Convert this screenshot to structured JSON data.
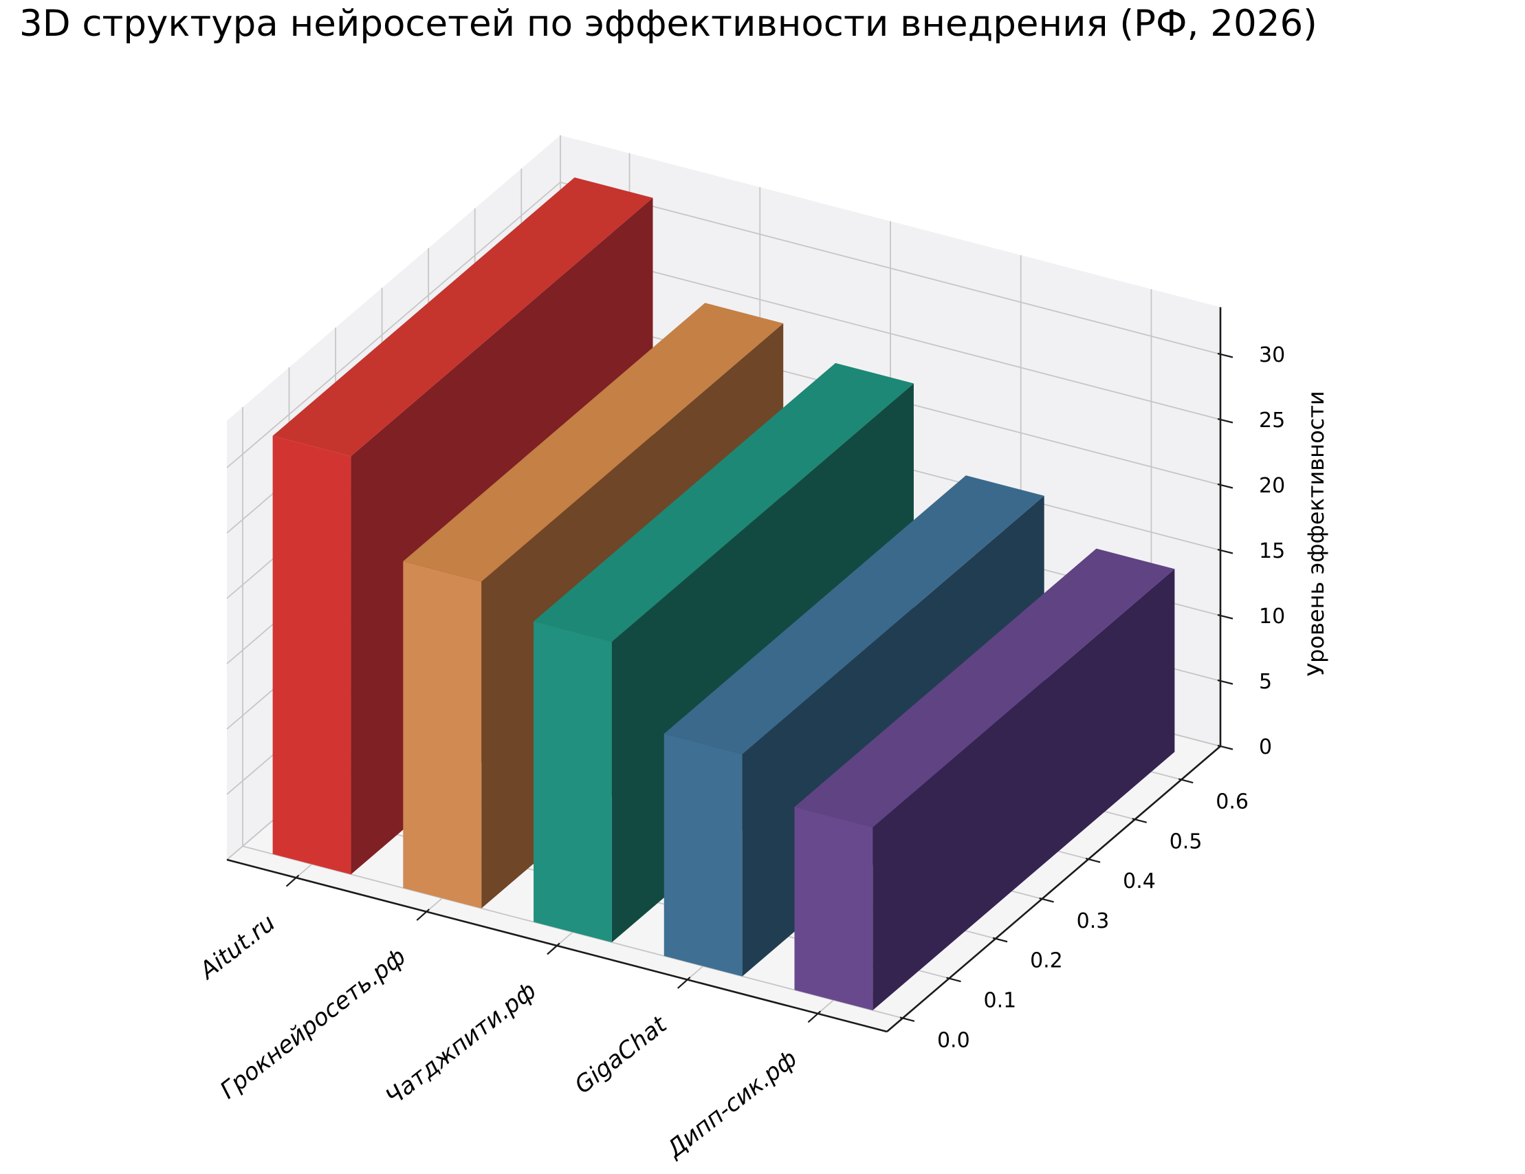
{
  "chart_data": {
    "type": "bar",
    "projection": "3d",
    "title": "3D структура нейросетей по эффективности внедрения (РФ, 2026)",
    "categories": [
      "Aitut.ru",
      "Грокнейросеть.рф",
      "Чатджпити.рф",
      "GigaChat",
      "Дипп-сик.рф"
    ],
    "values": [
      32,
      25,
      23,
      17,
      14
    ],
    "xlabel": "",
    "ylabel": "",
    "zlabel": "Уровень эффективности",
    "y_ticks": [
      "0.0",
      "0.1",
      "0.2",
      "0.3",
      "0.4",
      "0.5",
      "0.6"
    ],
    "z_ticks": [
      0,
      5,
      10,
      15,
      20,
      25,
      30
    ],
    "zlim": [
      0,
      33.6
    ],
    "grid": true,
    "legend": false,
    "bar_colors": [
      {
        "face": "#d23531",
        "top": "#c6342e",
        "side": "#7e2024"
      },
      {
        "face": "#d08a52",
        "top": "#c48045",
        "side": "#6f4627"
      },
      {
        "face": "#21907e",
        "top": "#1d8875",
        "side": "#124a41"
      },
      {
        "face": "#3f7093",
        "top": "#3a698c",
        "side": "#213d51"
      },
      {
        "face": "#69498d",
        "top": "#604383",
        "side": "#352450"
      }
    ],
    "style": {
      "pane": "#f1f1f3",
      "floor": "#f5f5f6",
      "grid": "#c6c6c6",
      "axis": "#1a1a1a",
      "text": "#000000"
    }
  }
}
